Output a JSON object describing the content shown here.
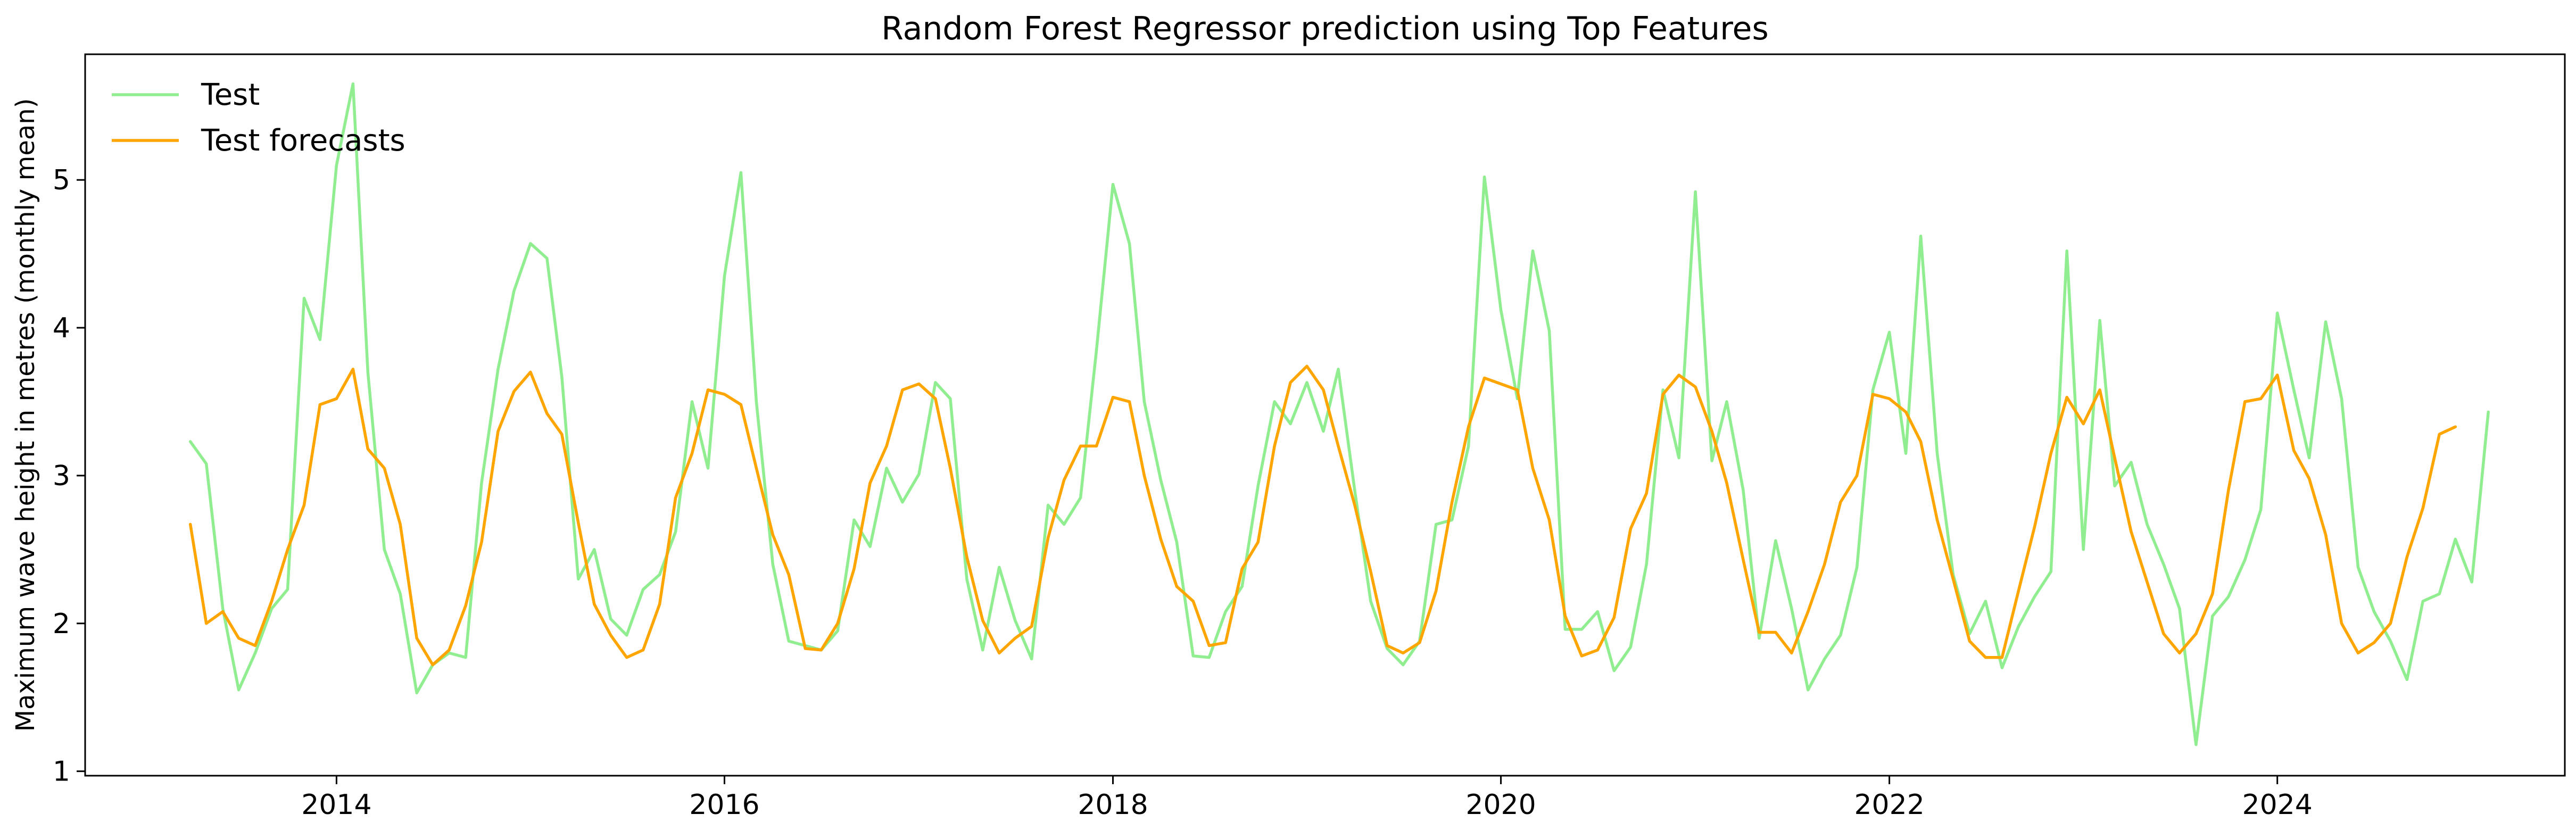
{
  "chart_data": {
    "type": "line",
    "title": "Random Forest Regressor prediction using Top Features",
    "xlabel": "",
    "ylabel": "Maximum wave height in metres (monthly mean)",
    "xlim": [
      "2012-09-15",
      "2025-06-25"
    ],
    "ylim": [
      0.97,
      5.85
    ],
    "xticks": [
      "2014",
      "2016",
      "2018",
      "2020",
      "2022",
      "2024"
    ],
    "yticks": [
      1,
      2,
      3,
      4,
      5
    ],
    "grid": false,
    "legend_position": "top-left",
    "x_start": "2013-04",
    "x_frequency": "monthly",
    "series": [
      {
        "name": "Test",
        "color": "#90ee90",
        "values": [
          3.23,
          3.08,
          2.1,
          1.55,
          1.8,
          2.1,
          2.23,
          4.2,
          3.92,
          5.1,
          5.65,
          3.7,
          2.5,
          2.2,
          1.53,
          1.72,
          1.8,
          1.77,
          2.95,
          3.72,
          4.25,
          4.57,
          4.47,
          3.67,
          2.3,
          2.5,
          2.03,
          1.92,
          2.23,
          2.33,
          2.62,
          3.5,
          3.05,
          4.35,
          5.05,
          3.5,
          2.4,
          1.88,
          1.85,
          1.82,
          1.95,
          2.7,
          2.52,
          3.05,
          2.82,
          3.01,
          3.63,
          3.52,
          2.3,
          1.82,
          2.38,
          2.02,
          1.76,
          2.8,
          2.67,
          2.85,
          3.85,
          4.97,
          4.57,
          3.5,
          2.97,
          2.55,
          1.78,
          1.77,
          2.08,
          2.25,
          2.93,
          3.5,
          3.35,
          3.63,
          3.3,
          3.72,
          2.9,
          2.15,
          1.83,
          1.72,
          1.88,
          2.67,
          2.7,
          3.2,
          5.02,
          4.12,
          3.52,
          4.52,
          3.98,
          1.96,
          1.96,
          2.08,
          1.68,
          1.84,
          2.4,
          3.58,
          3.12,
          4.92,
          3.1,
          3.5,
          2.9,
          1.9,
          2.56,
          2.1,
          1.55,
          1.76,
          1.92,
          2.38,
          3.58,
          3.97,
          3.15,
          4.62,
          3.15,
          2.33,
          1.93,
          2.15,
          1.7,
          1.98,
          2.18,
          2.35,
          4.52,
          2.5,
          4.05,
          2.93,
          3.09,
          2.67,
          2.4,
          2.1,
          1.18,
          2.05,
          2.18,
          2.43,
          2.77,
          4.1,
          3.58,
          3.12,
          4.04,
          3.52,
          2.38,
          2.08,
          1.88,
          1.62,
          2.15,
          2.2,
          2.57,
          2.28,
          3.43
        ]
      },
      {
        "name": "Test forecasts",
        "color": "#ffa500",
        "values": [
          2.67,
          2.0,
          2.08,
          1.9,
          1.85,
          2.15,
          2.5,
          2.8,
          3.48,
          3.52,
          3.72,
          3.18,
          3.05,
          2.67,
          1.9,
          1.72,
          1.82,
          2.12,
          2.55,
          3.3,
          3.57,
          3.7,
          3.42,
          3.28,
          2.68,
          2.13,
          1.92,
          1.77,
          1.82,
          2.13,
          2.85,
          3.15,
          3.58,
          3.55,
          3.48,
          3.05,
          2.6,
          2.33,
          1.83,
          1.82,
          2.0,
          2.37,
          2.95,
          3.2,
          3.58,
          3.62,
          3.52,
          3.05,
          2.45,
          2.02,
          1.8,
          1.9,
          1.98,
          2.58,
          2.97,
          3.2,
          3.2,
          3.53,
          3.5,
          3.0,
          2.57,
          2.25,
          2.15,
          1.85,
          1.87,
          2.37,
          2.55,
          3.2,
          3.63,
          3.74,
          3.58,
          3.2,
          2.8,
          2.35,
          1.85,
          1.8,
          1.87,
          2.22,
          2.82,
          3.33,
          3.66,
          3.62,
          3.58,
          3.05,
          2.7,
          2.05,
          1.78,
          1.82,
          2.04,
          2.64,
          2.88,
          3.55,
          3.68,
          3.6,
          3.3,
          2.95,
          2.43,
          1.94,
          1.94,
          1.8,
          2.08,
          2.4,
          2.82,
          3.0,
          3.55,
          3.52,
          3.43,
          3.23,
          2.7,
          2.3,
          1.88,
          1.77,
          1.77,
          2.22,
          2.65,
          3.15,
          3.53,
          3.35,
          3.58,
          3.12,
          2.62,
          2.28,
          1.93,
          1.8,
          1.93,
          2.2,
          2.9,
          3.5,
          3.52,
          3.68,
          3.17,
          2.98,
          2.6,
          2.0,
          1.8,
          1.87,
          2.0,
          2.45,
          2.78,
          3.28,
          3.33
        ]
      }
    ]
  }
}
